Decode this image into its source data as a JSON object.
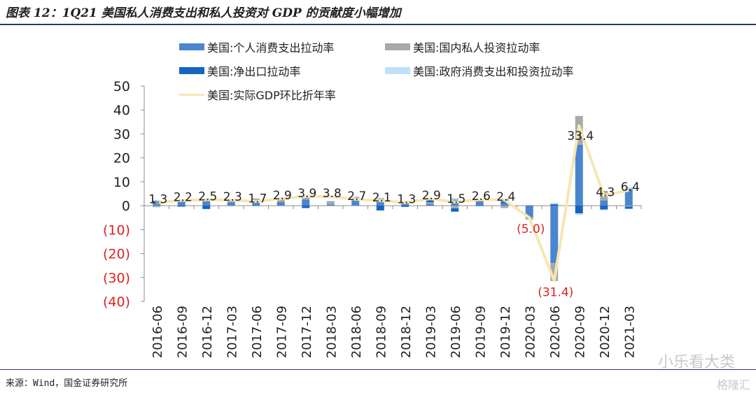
{
  "title": "图表 12：1Q21 美国私人消费支出和私人投资对 GDP 的贡献度小幅增加",
  "source": "来源：Wind，国金证券研究所",
  "watermark": "小乐看大类",
  "watermark2": "格隆汇",
  "colors": {
    "consumption": "#4a86d0",
    "investment": "#a9a9a9",
    "netexport": "#1565c0",
    "government": "#bfe0f7",
    "gdp": "#f7e6b3",
    "negative_label": "#e02020",
    "positive_label": "#222222"
  },
  "chart_data": {
    "type": "bar",
    "stacked": true,
    "categories": [
      "2016-06",
      "2016-09",
      "2016-12",
      "2017-03",
      "2017-06",
      "2017-09",
      "2017-12",
      "2018-03",
      "2018-06",
      "2018-09",
      "2018-12",
      "2019-03",
      "2019-06",
      "2019-09",
      "2019-12",
      "2020-03",
      "2020-06",
      "2020-09",
      "2020-12",
      "2021-03"
    ],
    "series": [
      {
        "name": "美国:个人消费支出拉动率",
        "values": [
          2.0,
          1.8,
          1.8,
          1.3,
          2.3,
          1.5,
          2.6,
          0.5,
          2.5,
          2.0,
          0.9,
          0.8,
          2.5,
          1.8,
          1.1,
          -4.8,
          -24.0,
          25.5,
          2.2,
          7.0
        ]
      },
      {
        "name": "美国:国内私人投资拉动率",
        "values": [
          -0.6,
          0.5,
          1.2,
          0.1,
          0.7,
          0.9,
          1.0,
          1.2,
          -0.1,
          1.0,
          0.2,
          0.6,
          -1.1,
          0.3,
          -1.0,
          -1.0,
          -7.5,
          12.0,
          4.0,
          -0.4
        ]
      },
      {
        "name": "美国:净出口拉动率",
        "values": [
          0.1,
          -0.4,
          -1.4,
          0.3,
          -0.1,
          0.3,
          -1.0,
          0.0,
          0.9,
          -2.0,
          -0.5,
          1.1,
          -1.4,
          -0.1,
          1.5,
          0.1,
          0.6,
          -3.2,
          -1.6,
          -0.9
        ]
      },
      {
        "name": "美国:政府消费支出和投资拉动率",
        "values": [
          -0.1,
          0.1,
          0.2,
          0.1,
          -0.1,
          0.2,
          0.4,
          0.3,
          0.5,
          0.4,
          0.3,
          0.5,
          0.8,
          0.4,
          0.4,
          0.2,
          0.6,
          -0.7,
          -0.3,
          0.8
        ]
      },
      {
        "name": "美国:实际GDP环比折年率",
        "type": "line",
        "values": [
          1.3,
          2.2,
          2.5,
          2.3,
          1.7,
          2.9,
          3.9,
          3.8,
          2.7,
          2.1,
          1.3,
          2.9,
          1.5,
          2.6,
          2.4,
          -5.0,
          -31.4,
          33.4,
          4.3,
          6.4
        ]
      }
    ],
    "data_labels": [
      "1.3",
      "2.2",
      "2.5",
      "2.3",
      "1.7",
      "2.9",
      "3.9",
      "3.8",
      "2.7",
      "2.1",
      "1.3",
      "2.9",
      "1.5",
      "2.6",
      "2.4",
      "(5.0)",
      "(31.4)",
      "33.4",
      "4.3",
      "6.4"
    ],
    "ylim": [
      -40,
      50
    ],
    "yticks": [
      50,
      40,
      30,
      20,
      10,
      0,
      -10,
      -20,
      -30,
      -40
    ],
    "ytick_labels": [
      "50",
      "40",
      "30",
      "20",
      "10",
      "0",
      "(10)",
      "(20)",
      "(30)",
      "(40)"
    ],
    "xlabel": "",
    "ylabel": "",
    "grid": false,
    "legend_position": "top"
  }
}
